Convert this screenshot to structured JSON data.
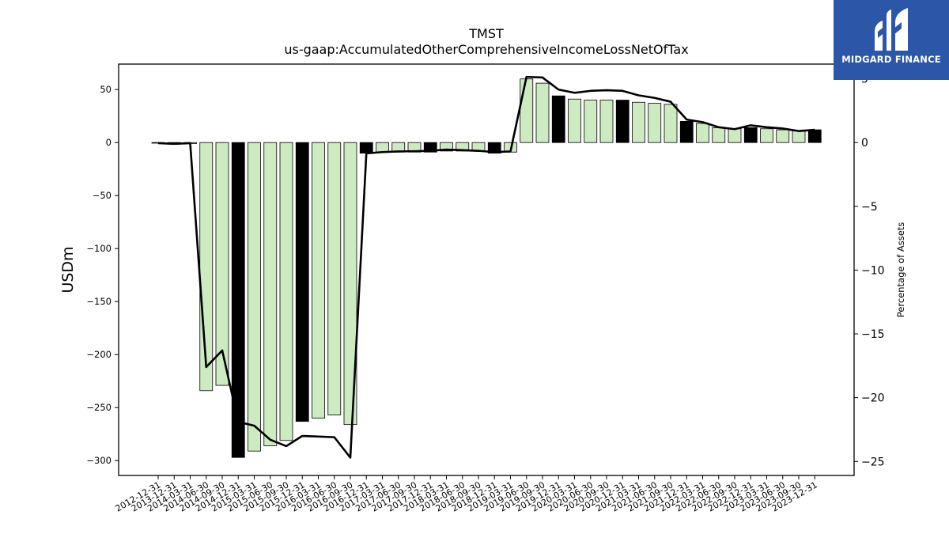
{
  "chart_data": {
    "type": "bar",
    "title": "TMST",
    "subtitle": "us-gaap:AccumulatedOtherComprehensiveIncomeLossNetOfTax",
    "ylabel": "USDm",
    "y2label": "Percentage of Assets",
    "ylim": [
      -314,
      74
    ],
    "y2lim": [
      -26.1,
      6.15
    ],
    "yticks": [
      -300,
      -250,
      -200,
      -150,
      -100,
      -50,
      0,
      50
    ],
    "y2ticks": [
      -25,
      -20,
      -15,
      -10,
      -5,
      0,
      5
    ],
    "categories": [
      "2012-12-31",
      "2013-12-31",
      "2014-03-31",
      "2014-06-30",
      "2014-09-30",
      "2014-12-31",
      "2015-03-31",
      "2015-06-30",
      "2015-09-30",
      "2015-12-31",
      "2016-03-31",
      "2016-06-30",
      "2016-09-30",
      "2016-12-31",
      "2017-03-31",
      "2017-06-30",
      "2017-09-30",
      "2017-12-31",
      "2018-03-31",
      "2018-06-30",
      "2018-09-30",
      "2018-12-31",
      "2019-03-31",
      "2019-06-30",
      "2019-09-30",
      "2019-12-31",
      "2020-03-31",
      "2020-06-30",
      "2020-09-30",
      "2020-12-31",
      "2021-03-31",
      "2021-06-30",
      "2021-09-30",
      "2021-12-31",
      "2022-03-31",
      "2022-06-30",
      "2022-09-30",
      "2022-12-31",
      "2023-03-31",
      "2023-06-30",
      "2023-09-30",
      "2023-12-31"
    ],
    "series": [
      {
        "type": "bar",
        "values": [
          -0.5,
          -1.5,
          -1.0,
          -234,
          -229,
          -297,
          -291,
          -286,
          -281,
          -263,
          -260,
          -257,
          -266,
          -10,
          -9,
          -9,
          -9,
          -9,
          -8,
          -8,
          -8,
          -10,
          -9,
          60,
          56,
          44,
          41,
          40,
          40,
          40,
          38,
          37,
          36,
          20,
          18,
          14,
          13,
          14,
          13,
          12,
          11,
          12
        ]
      },
      {
        "type": "line",
        "axis": "right",
        "values": [
          -0.05,
          -0.1,
          -0.05,
          -17.6,
          -16.3,
          -21.9,
          -22.2,
          -23.3,
          -23.8,
          -23.0,
          -23.05,
          -23.1,
          -24.7,
          -0.85,
          -0.75,
          -0.7,
          -0.68,
          -0.65,
          -0.55,
          -0.6,
          -0.65,
          -0.75,
          -0.7,
          5.15,
          5.1,
          4.15,
          3.9,
          4.05,
          4.1,
          4.05,
          3.7,
          3.5,
          3.2,
          1.8,
          1.6,
          1.2,
          1.05,
          1.35,
          1.2,
          1.1,
          0.9,
          1.0
        ]
      }
    ],
    "highlight_categories": [
      "2014-12-31",
      "2015-12-31",
      "2016-12-31",
      "2017-12-31",
      "2018-12-31",
      "2019-12-31",
      "2020-12-31",
      "2021-12-31",
      "2022-12-31",
      "2023-12-31"
    ],
    "colors": {
      "bar": "#cdeac0",
      "bar_highlight": "#000000",
      "line": "#000000"
    },
    "grid": false
  },
  "logo": {
    "text": "MIDGARD FINANCE",
    "color": "#2c57a8"
  }
}
